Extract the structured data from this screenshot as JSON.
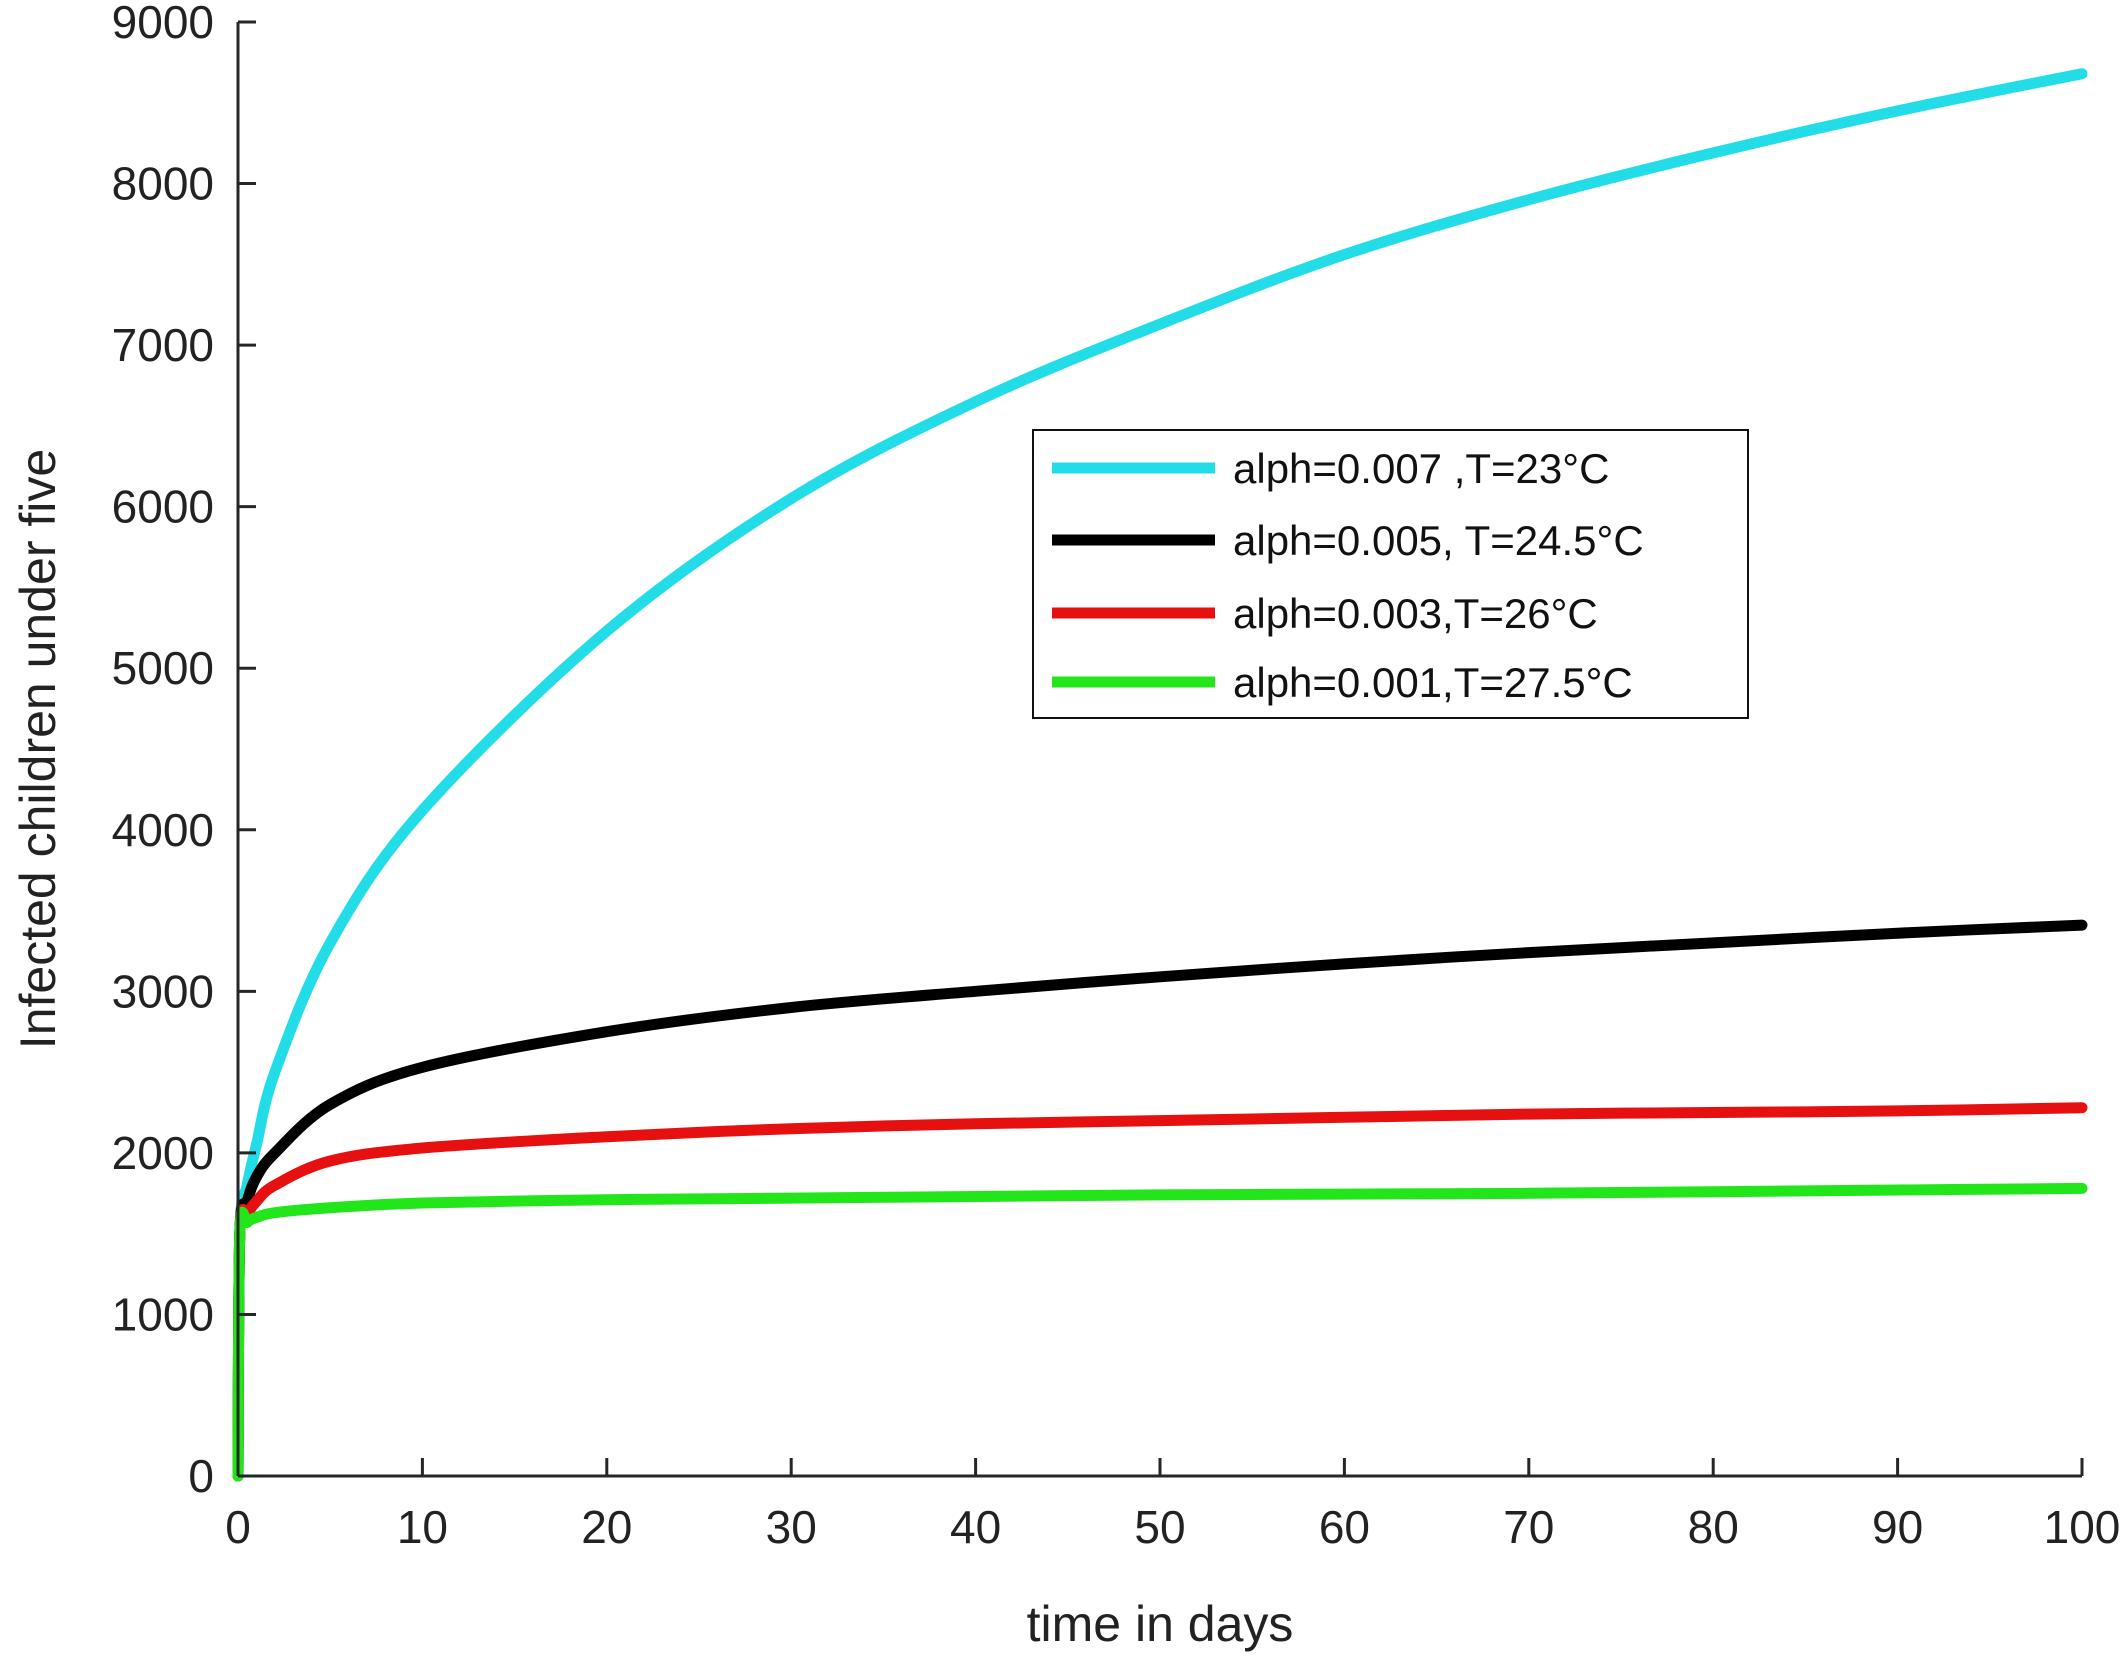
{
  "chart_data": {
    "type": "line",
    "title": "",
    "xlabel": "time in days",
    "ylabel": "Infected children under five",
    "xlim": [
      0,
      100
    ],
    "ylim": [
      0,
      9000
    ],
    "xticks": [
      "0",
      "10",
      "20",
      "30",
      "40",
      "50",
      "60",
      "70",
      "80",
      "90",
      "100"
    ],
    "yticks": [
      "0",
      "1000",
      "2000",
      "3000",
      "4000",
      "5000",
      "6000",
      "7000",
      "8000",
      "9000"
    ],
    "grid": false,
    "legend_position": "upper-right",
    "x": [
      0,
      0.1,
      0.5,
      1,
      2,
      5,
      10,
      20,
      30,
      40,
      50,
      60,
      70,
      80,
      90,
      100
    ],
    "series": [
      {
        "name": "alph=0.007 ,T=23°C",
        "color": "#22dde8",
        "values": [
          0,
          1500,
          1800,
          2050,
          2500,
          3300,
          4120,
          5230,
          6050,
          6650,
          7130,
          7560,
          7900,
          8190,
          8450,
          8680
        ]
      },
      {
        "name": "alph=0.005, T=24.5°C",
        "color": "#000000",
        "values": [
          0,
          1500,
          1700,
          1850,
          2000,
          2300,
          2530,
          2750,
          2900,
          3000,
          3090,
          3170,
          3240,
          3300,
          3360,
          3410
        ]
      },
      {
        "name": "alph=0.003,T=26°C",
        "color": "#e61010",
        "values": [
          0,
          1500,
          1620,
          1700,
          1800,
          1950,
          2030,
          2100,
          2150,
          2180,
          2200,
          2220,
          2240,
          2250,
          2260,
          2280
        ]
      },
      {
        "name": "alph=0.001,T=27.5°C",
        "color": "#22e61a",
        "values": [
          0,
          1500,
          1570,
          1600,
          1630,
          1660,
          1690,
          1710,
          1720,
          1730,
          1740,
          1745,
          1750,
          1760,
          1770,
          1780
        ]
      }
    ]
  }
}
